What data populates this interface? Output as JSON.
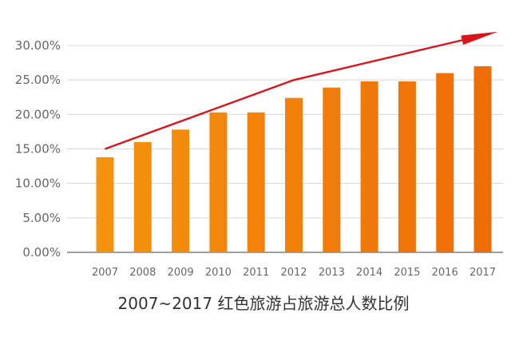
{
  "chart_data": {
    "type": "bar",
    "title": "2007~2017 红色旅游占旅游总人数比例",
    "xlabel": "",
    "ylabel": "",
    "categories": [
      "2007",
      "2008",
      "2009",
      "2010",
      "2011",
      "2012",
      "2013",
      "2014",
      "2015",
      "2016",
      "2017"
    ],
    "values": [
      13.8,
      16.0,
      17.8,
      20.3,
      20.3,
      22.4,
      23.9,
      24.8,
      24.8,
      26.0,
      27.0
    ],
    "ylim": [
      0,
      30
    ],
    "yticks": [
      "0.00%",
      "5.00%",
      "10.00%",
      "15.00%",
      "20.00%",
      "25.00%",
      "30.00%"
    ],
    "ytick_values": [
      0,
      5,
      10,
      15,
      20,
      25,
      30
    ],
    "grid": true,
    "legend": "none",
    "trend_arrow": {
      "points": [
        [
          2007,
          15.0
        ],
        [
          2012,
          25.0
        ],
        [
          2017.4,
          32.0
        ]
      ],
      "color": "#d9161c"
    },
    "colors": {
      "bar_light": "#f5960f",
      "bar_dark": "#ee6b05",
      "grid": "#d7d7d7",
      "axis": "#666666"
    }
  }
}
